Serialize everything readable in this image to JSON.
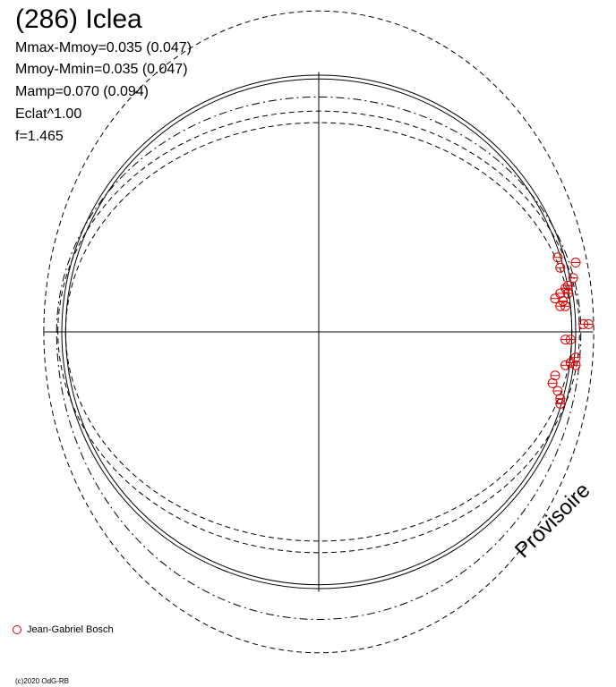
{
  "title": "(286) Iclea",
  "stats": {
    "line1": "Mmax-Mmoy=0.035 (0.047)",
    "line2": "Mmoy-Mmin=0.035 (0.047)",
    "line3": "Mamp=0.070 (0.094)",
    "line4": "Eclat^1.00",
    "line5": "f=1.465"
  },
  "legend": {
    "observer": "Jean-Gabriel Bosch",
    "marker_color": "#e00000"
  },
  "watermark": "Provisoire",
  "copyright": "(c)2020 OdG-RB",
  "chart_data": {
    "type": "scatter",
    "description_free": true,
    "axes": {
      "x_range": [
        -1.04,
        1.04
      ],
      "y_range": [
        -1.04,
        1.04
      ],
      "grid": false
    },
    "curves": [
      {
        "style": "solid",
        "rx": 1.0,
        "ry_top": 1.0,
        "ry_bottom": 1.0
      },
      {
        "style": "solid",
        "rx": 0.985,
        "ry_top": 0.985,
        "ry_bottom": 0.985
      },
      {
        "style": "dashed",
        "rx": 1.015,
        "ry_top": 0.86,
        "ry_bottom": 0.86
      },
      {
        "style": "dashed",
        "rx": 0.985,
        "ry_top": 0.815,
        "ry_bottom": 0.815
      },
      {
        "style": "dashdot",
        "rx": 1.02,
        "ry_top": 0.915,
        "ry_bottom": 1.12
      },
      {
        "style": "dashed",
        "rx": 1.07,
        "ry_top": 1.25,
        "ry_bottom": 1.25
      }
    ],
    "points": [
      [
        0.93,
        0.29
      ],
      [
        1.0,
        0.27
      ],
      [
        0.94,
        0.25
      ],
      [
        0.99,
        0.21
      ],
      [
        0.97,
        0.18
      ],
      [
        0.96,
        0.17
      ],
      [
        0.94,
        0.15
      ],
      [
        0.97,
        0.15
      ],
      [
        0.92,
        0.13
      ],
      [
        0.95,
        0.12
      ],
      [
        0.94,
        0.1
      ],
      [
        0.96,
        0.1
      ],
      [
        1.03,
        0.03
      ],
      [
        1.05,
        0.03
      ],
      [
        0.96,
        -0.03
      ],
      [
        0.98,
        -0.03
      ],
      [
        1.0,
        -0.1
      ],
      [
        0.98,
        -0.12
      ],
      [
        0.96,
        -0.13
      ],
      [
        1.0,
        -0.13
      ],
      [
        0.92,
        -0.17
      ],
      [
        0.91,
        -0.2
      ],
      [
        0.93,
        -0.23
      ],
      [
        0.94,
        -0.26
      ],
      [
        0.94,
        -0.28
      ]
    ]
  }
}
